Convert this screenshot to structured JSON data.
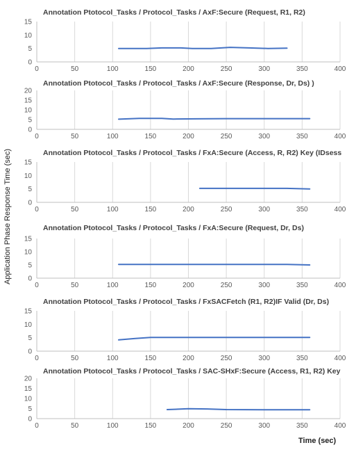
{
  "figure": {
    "ylabel": "Application  Phase Response Time (sec)",
    "xlabel": "Time (sec)",
    "line_color": "#4472C4",
    "grid_color": "#d9d9d9",
    "axis_color": "#bfbfbf"
  },
  "chart_data": [
    {
      "type": "line",
      "title": "Annotation  Ptotocol_Tasks / Protocol_Tasks / AxF:Secure (Request, R1, R2)",
      "xlim": [
        0,
        400
      ],
      "ylim": [
        0,
        15
      ],
      "xticks": [
        0,
        50,
        100,
        150,
        200,
        250,
        300,
        350,
        400
      ],
      "yticks": [
        0,
        5,
        10,
        15
      ],
      "grid": "vertical",
      "series": [
        {
          "x": [
            108,
            125,
            145,
            165,
            190,
            205,
            230,
            255,
            280,
            305,
            330
          ],
          "y": [
            5.0,
            5.0,
            5.0,
            5.2,
            5.2,
            5.0,
            5.0,
            5.4,
            5.2,
            5.0,
            5.1
          ]
        }
      ]
    },
    {
      "type": "line",
      "title": "Annotation  Ptotocol_Tasks / Protocol_Tasks  / AxF:Secure (Response, Dr, Ds) )",
      "xlim": [
        0,
        400
      ],
      "ylim": [
        0,
        20
      ],
      "xticks": [
        0,
        50,
        100,
        150,
        200,
        250,
        300,
        350,
        400
      ],
      "yticks": [
        0,
        5,
        10,
        15,
        20
      ],
      "grid": "vertical",
      "series": [
        {
          "x": [
            108,
            135,
            165,
            180,
            210,
            250,
            300,
            360
          ],
          "y": [
            5.2,
            5.6,
            5.6,
            5.3,
            5.4,
            5.5,
            5.5,
            5.5
          ]
        }
      ]
    },
    {
      "type": "line",
      "title": "Annotation  Ptotocol_Tasks / Protocol_Tasks / FxA:Secure (Access, R, R2) Key (IDsess",
      "xlim": [
        0,
        400
      ],
      "ylim": [
        0,
        15
      ],
      "xticks": [
        0,
        50,
        100,
        150,
        200,
        250,
        300,
        350,
        400
      ],
      "yticks": [
        0,
        5,
        10,
        15
      ],
      "grid": "vertical",
      "series": [
        {
          "x": [
            215,
            250,
            300,
            330,
            360
          ],
          "y": [
            5.2,
            5.2,
            5.2,
            5.2,
            5.0
          ]
        }
      ]
    },
    {
      "type": "line",
      "title": "Annotation  Ptotocol_Tasks / Protocol_Tasks / FxA:Secure (Request, Dr, Ds)",
      "xlim": [
        0,
        400
      ],
      "ylim": [
        0,
        15
      ],
      "xticks": [
        0,
        50,
        100,
        150,
        200,
        250,
        300,
        350,
        400
      ],
      "yticks": [
        0,
        5,
        10,
        15
      ],
      "grid": "vertical",
      "series": [
        {
          "x": [
            108,
            150,
            200,
            250,
            300,
            330,
            360
          ],
          "y": [
            5.2,
            5.2,
            5.2,
            5.2,
            5.2,
            5.2,
            5.0
          ]
        }
      ]
    },
    {
      "type": "line",
      "title": "Annotation  Ptotocol_Tasks / Protocol_Tasks / FxSACFetch (R1, R2)IF Valid (Dr, Ds)",
      "xlim": [
        0,
        400
      ],
      "ylim": [
        0,
        15
      ],
      "xticks": [
        0,
        50,
        100,
        150,
        200,
        250,
        300,
        350,
        400
      ],
      "yticks": [
        0,
        5,
        10,
        15
      ],
      "grid": "vertical",
      "series": [
        {
          "x": [
            108,
            130,
            150,
            200,
            250,
            300,
            360
          ],
          "y": [
            4.2,
            4.7,
            5.1,
            5.1,
            5.1,
            5.1,
            5.1
          ]
        }
      ]
    },
    {
      "type": "line",
      "title": "Annotation  Ptotocol_Tasks / Protocol_Tasks / SAC-SHxF:Secure (Access, R1, R2) Key",
      "xlim": [
        0,
        400
      ],
      "ylim": [
        0,
        20
      ],
      "xticks": [
        0,
        50,
        100,
        150,
        200,
        250,
        300,
        350,
        400
      ],
      "yticks": [
        0,
        5,
        10,
        15,
        20
      ],
      "grid": "vertical",
      "series": [
        {
          "x": [
            172,
            200,
            225,
            250,
            300,
            360
          ],
          "y": [
            4.5,
            4.9,
            4.8,
            4.5,
            4.4,
            4.4
          ]
        }
      ]
    }
  ]
}
